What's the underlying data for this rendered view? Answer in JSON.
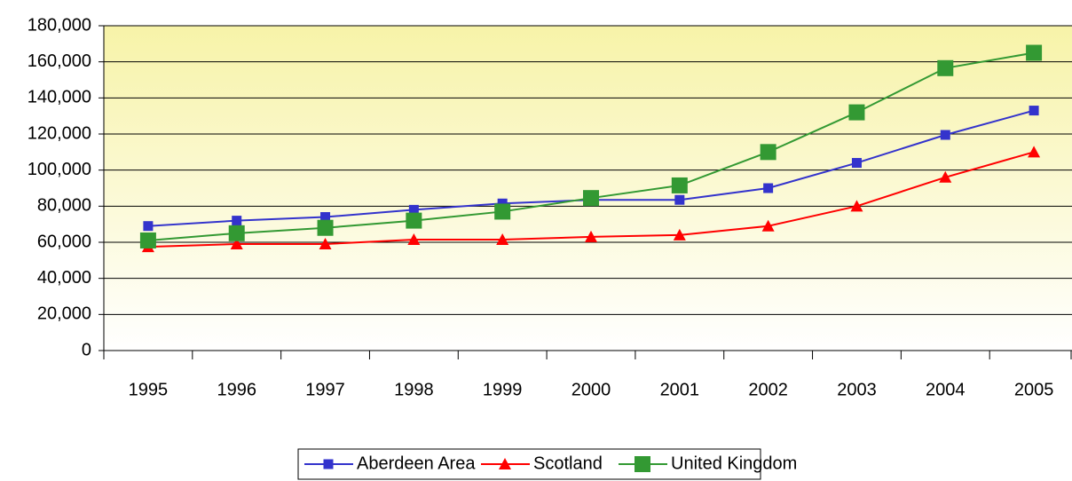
{
  "chart_data": {
    "type": "line",
    "categories": [
      "1995",
      "1996",
      "1997",
      "1998",
      "1999",
      "2000",
      "2001",
      "2002",
      "2003",
      "2004",
      "2005"
    ],
    "series": [
      {
        "name": "Aberdeen Area",
        "color": "#3333cc",
        "marker": "square",
        "values": [
          69000,
          72000,
          74000,
          78000,
          81500,
          83500,
          83500,
          90000,
          104000,
          119500,
          133000
        ]
      },
      {
        "name": "Scotland",
        "color": "#ff0000",
        "marker": "triangle",
        "values": [
          57500,
          59000,
          59000,
          61500,
          61500,
          63000,
          64000,
          69000,
          80000,
          96000,
          110000
        ]
      },
      {
        "name": "United Kingdom",
        "color": "#339933",
        "marker": "big-square",
        "values": [
          61000,
          65000,
          68000,
          72000,
          77000,
          84500,
          91500,
          110000,
          132000,
          156500,
          165000
        ]
      }
    ],
    "ylim": [
      0,
      180000
    ],
    "yticks": [
      0,
      {
        "value": 20000,
        "label": "20,000"
      },
      {
        "value": 40000,
        "label": "40,000"
      },
      {
        "value": 60000,
        "label": "60,000"
      },
      {
        "value": 80000,
        "label": "80,000"
      },
      {
        "value": 100000,
        "label": "100,000"
      },
      {
        "value": 120000,
        "label": "120,000"
      },
      {
        "value": 140000,
        "label": "140,000"
      },
      {
        "value": 160000,
        "label": "160,000"
      },
      {
        "value": 180000,
        "label": "180,000"
      }
    ],
    "grid": true,
    "legend": "bottom"
  }
}
